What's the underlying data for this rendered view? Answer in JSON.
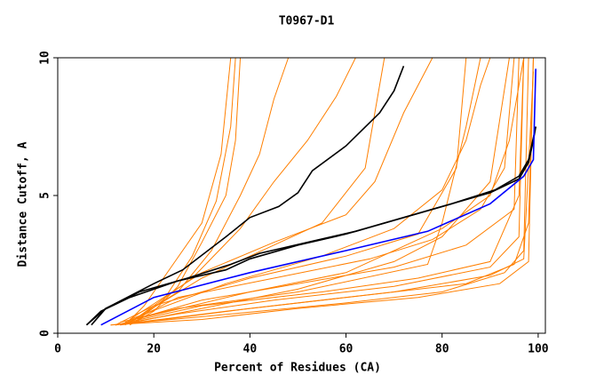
{
  "chart_data": {
    "type": "line",
    "title": "T0967-D1",
    "x_label": "Percent of Residues (CA)",
    "y_label": "Distance Cutoff, A",
    "xlim": [
      0,
      101.5
    ],
    "ylim": [
      0,
      10
    ],
    "xticks": [
      0,
      20,
      40,
      60,
      80,
      100
    ],
    "yticks": [
      0,
      5,
      10
    ],
    "series": [
      {
        "color": "#ff7f00",
        "x": [
          11,
          30,
          60,
          80,
          93,
          97,
          98
        ],
        "values": [
          0.3,
          0.6,
          1.1,
          1.5,
          2.2,
          3,
          10
        ]
      },
      {
        "color": "#ff7f00",
        "x": [
          12,
          35,
          60,
          85,
          95,
          98,
          99
        ],
        "values": [
          0.3,
          0.8,
          1.3,
          1.8,
          2.5,
          4,
          10
        ]
      },
      {
        "color": "#ff7f00",
        "x": [
          13,
          40,
          70,
          90,
          97,
          99
        ],
        "values": [
          0.3,
          0.9,
          1.5,
          2.1,
          2.7,
          9.5
        ]
      },
      {
        "color": "#ff7f00",
        "x": [
          12,
          30,
          55,
          75,
          90,
          96,
          97
        ],
        "values": [
          0.3,
          1.0,
          1.5,
          2.0,
          2.6,
          5,
          10
        ]
      },
      {
        "color": "#ff7f00",
        "x": [
          14,
          30,
          50,
          70,
          85,
          95,
          96
        ],
        "values": [
          0.4,
          1.2,
          1.8,
          2.4,
          3.2,
          4.5,
          10
        ]
      },
      {
        "color": "#ff7f00",
        "x": [
          15,
          25,
          45,
          65,
          78,
          88,
          93,
          95
        ],
        "values": [
          0.4,
          1.3,
          2.0,
          2.7,
          3.4,
          4.5,
          6,
          10
        ]
      },
      {
        "color": "#ff7f00",
        "x": [
          13,
          30,
          50,
          70,
          80,
          90,
          94
        ],
        "values": [
          0.3,
          0.9,
          1.6,
          2.6,
          3.5,
          5.5,
          10
        ]
      },
      {
        "color": "#ff7f00",
        "x": [
          15,
          20,
          25,
          30,
          35,
          37,
          38
        ],
        "values": [
          0.3,
          0.8,
          1.7,
          3.3,
          5,
          7,
          10
        ]
      },
      {
        "color": "#ff7f00",
        "x": [
          16,
          22,
          28,
          33,
          36,
          37
        ],
        "values": [
          0.4,
          1.2,
          2.8,
          4.8,
          7.5,
          10
        ]
      },
      {
        "color": "#ff7f00",
        "x": [
          14,
          18,
          24,
          30,
          34,
          36
        ],
        "values": [
          0.3,
          1.0,
          2.5,
          4.0,
          6.5,
          10
        ]
      },
      {
        "color": "#ff7f00",
        "x": [
          15,
          25,
          32,
          38,
          42,
          45,
          48
        ],
        "values": [
          0.4,
          1.5,
          3.0,
          5.0,
          6.5,
          8.5,
          10
        ]
      },
      {
        "color": "#ff7f00",
        "x": [
          16,
          28,
          38,
          45,
          52,
          58,
          62
        ],
        "values": [
          0.5,
          2.0,
          3.8,
          5.5,
          7.0,
          8.6,
          10
        ]
      },
      {
        "color": "#ff7f00",
        "x": [
          15,
          30,
          45,
          60,
          66,
          72,
          78
        ],
        "values": [
          0.5,
          2.2,
          3.3,
          4.3,
          5.5,
          8.0,
          10
        ]
      },
      {
        "color": "#ff7f00",
        "x": [
          15,
          35,
          55,
          70,
          80,
          85,
          88,
          90
        ],
        "values": [
          0.5,
          1.8,
          2.8,
          3.8,
          5.2,
          7.0,
          9.0,
          10
        ]
      },
      {
        "color": "#ff7f00",
        "x": [
          16,
          40,
          60,
          80,
          90,
          94,
          97
        ],
        "values": [
          0.5,
          1.5,
          2.2,
          3.8,
          5.0,
          7.0,
          10
        ]
      },
      {
        "color": "#ff7f00",
        "x": [
          13,
          25,
          50,
          77,
          80,
          85,
          88
        ],
        "values": [
          0.4,
          0.9,
          1.5,
          2.5,
          4.0,
          7.5,
          10
        ]
      },
      {
        "color": "#ff7f00",
        "x": [
          12,
          20,
          40,
          60,
          75,
          83,
          85
        ],
        "values": [
          0.3,
          1.0,
          2.0,
          2.8,
          3.6,
          6.0,
          10
        ]
      },
      {
        "color": "#ff7f00",
        "x": [
          14,
          30,
          45,
          55,
          64,
          68
        ],
        "values": [
          0.3,
          2.0,
          3.2,
          4.0,
          6.0,
          10
        ]
      },
      {
        "color": "#ff7f00",
        "x": [
          11,
          30,
          50,
          75,
          92,
          98,
          99
        ],
        "values": [
          0.3,
          0.5,
          0.9,
          1.3,
          1.8,
          2.6,
          10
        ]
      },
      {
        "color": "#ff7f00",
        "x": [
          12,
          25,
          45,
          70,
          90,
          96,
          97
        ],
        "values": [
          0.3,
          0.7,
          1.2,
          1.7,
          2.4,
          3.5,
          10
        ]
      },
      {
        "color": "#000000",
        "x": [
          6,
          9,
          15,
          25,
          35,
          40,
          50,
          60,
          70,
          80,
          90,
          96,
          98,
          99,
          99.5
        ],
        "values": [
          0.3,
          0.8,
          1.3,
          1.9,
          2.3,
          2.7,
          3.2,
          3.6,
          4.1,
          4.6,
          5.1,
          5.6,
          6.2,
          7.0,
          7.5
        ]
      },
      {
        "color": "#000000",
        "x": [
          7,
          10,
          17,
          27,
          36,
          42,
          52,
          62,
          72,
          82,
          91,
          96,
          98,
          99.5
        ],
        "values": [
          0.3,
          0.9,
          1.5,
          2.0,
          2.5,
          2.9,
          3.3,
          3.7,
          4.2,
          4.7,
          5.2,
          5.7,
          6.3,
          7.5
        ]
      },
      {
        "color": "#000000",
        "x": [
          6,
          10,
          20,
          26,
          35,
          40,
          46,
          50,
          53,
          60,
          67,
          70,
          72
        ],
        "values": [
          0.3,
          0.9,
          1.8,
          2.3,
          3.5,
          4.2,
          4.6,
          5.1,
          5.9,
          6.8,
          8.0,
          8.8,
          9.7
        ]
      },
      {
        "color": "#0000ff",
        "x": [
          9,
          20,
          40,
          60,
          77,
          90,
          97,
          99,
          99.5
        ],
        "values": [
          0.3,
          1.3,
          2.2,
          3.0,
          3.7,
          4.7,
          5.7,
          6.3,
          9.6
        ]
      }
    ]
  }
}
